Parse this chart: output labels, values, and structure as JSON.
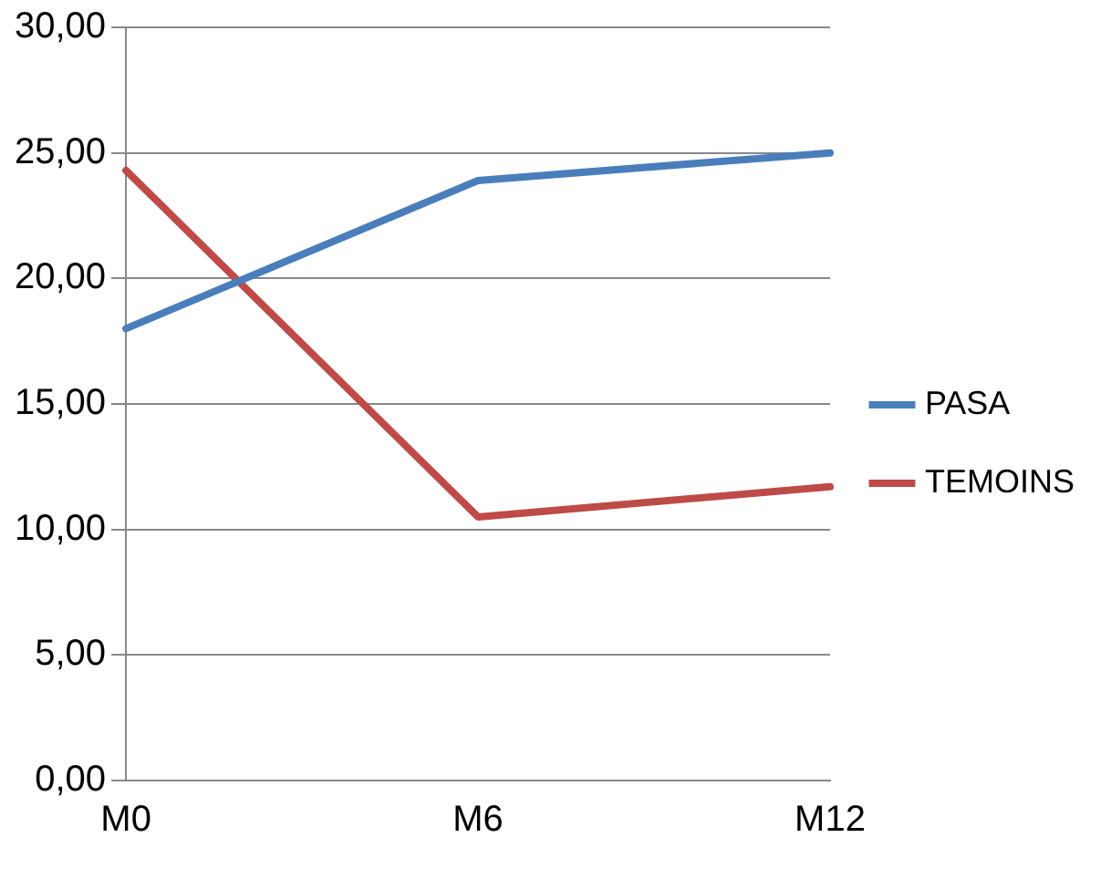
{
  "chart_data": {
    "type": "line",
    "categories": [
      "M0",
      "M6",
      "M12"
    ],
    "series": [
      {
        "name": "PASA",
        "color": "#4a7ebb",
        "values": [
          18.0,
          23.9,
          25.0
        ]
      },
      {
        "name": "TEMOINS",
        "color": "#be4b48",
        "values": [
          24.3,
          10.5,
          11.7
        ]
      }
    ],
    "ylim": [
      0,
      30
    ],
    "yticks": [
      {
        "value": 0,
        "label": "0,00"
      },
      {
        "value": 5,
        "label": "5,00"
      },
      {
        "value": 10,
        "label": "10,00"
      },
      {
        "value": 15,
        "label": "15,00"
      },
      {
        "value": 20,
        "label": "20,00"
      },
      {
        "value": 25,
        "label": "25,00"
      },
      {
        "value": 30,
        "label": "30,00"
      }
    ],
    "grid": "y",
    "legend": "right",
    "marker": "none",
    "line_style": "solid"
  }
}
